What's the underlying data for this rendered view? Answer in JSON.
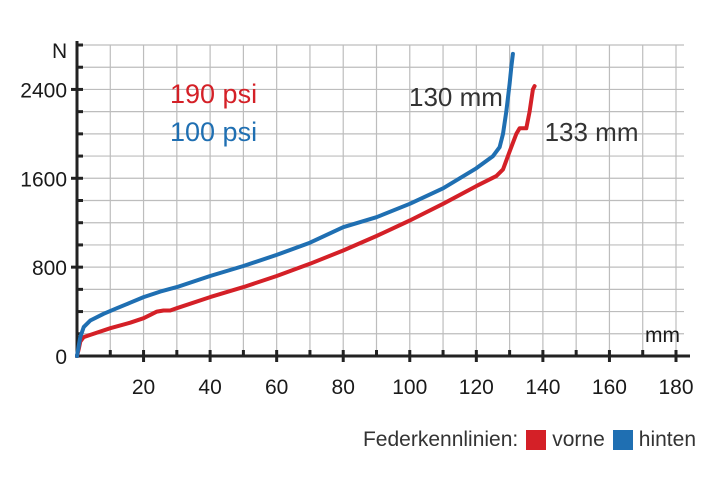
{
  "chart_data": {
    "type": "line",
    "ylabel": "N",
    "xlabel": "mm",
    "xlim": [
      0,
      180
    ],
    "ylim": [
      0,
      2800
    ],
    "x_ticks": [
      "20",
      "40",
      "60",
      "80",
      "100",
      "120",
      "140",
      "160",
      "180"
    ],
    "y_ticks": [
      "0",
      "800",
      "1600",
      "2400"
    ],
    "grid": true,
    "series": [
      {
        "name": "vorne",
        "color": "#d42027",
        "pressure_label": "190 psi",
        "end_label": "133 mm",
        "points": [
          [
            0,
            0
          ],
          [
            0.5,
            60
          ],
          [
            1,
            130
          ],
          [
            2,
            170
          ],
          [
            4,
            190
          ],
          [
            10,
            250
          ],
          [
            16,
            300
          ],
          [
            20,
            340
          ],
          [
            22,
            370
          ],
          [
            24,
            400
          ],
          [
            26,
            410
          ],
          [
            28,
            410
          ],
          [
            30,
            430
          ],
          [
            40,
            530
          ],
          [
            50,
            620
          ],
          [
            60,
            720
          ],
          [
            70,
            830
          ],
          [
            80,
            950
          ],
          [
            90,
            1080
          ],
          [
            100,
            1220
          ],
          [
            110,
            1370
          ],
          [
            120,
            1530
          ],
          [
            126,
            1620
          ],
          [
            128,
            1680
          ],
          [
            130,
            1840
          ],
          [
            132,
            2000
          ],
          [
            133,
            2050
          ],
          [
            134,
            2050
          ],
          [
            135,
            2050
          ],
          [
            136,
            2200
          ],
          [
            137,
            2400
          ],
          [
            137.5,
            2430
          ]
        ]
      },
      {
        "name": "hinten",
        "color": "#1f6fb2",
        "pressure_label": "100 psi",
        "end_label": "130 mm",
        "points": [
          [
            0,
            0
          ],
          [
            0.5,
            90
          ],
          [
            1,
            170
          ],
          [
            2,
            260
          ],
          [
            4,
            320
          ],
          [
            8,
            380
          ],
          [
            12,
            430
          ],
          [
            16,
            480
          ],
          [
            20,
            530
          ],
          [
            25,
            580
          ],
          [
            30,
            620
          ],
          [
            40,
            720
          ],
          [
            50,
            810
          ],
          [
            60,
            910
          ],
          [
            70,
            1020
          ],
          [
            80,
            1160
          ],
          [
            90,
            1250
          ],
          [
            100,
            1370
          ],
          [
            110,
            1510
          ],
          [
            120,
            1690
          ],
          [
            125,
            1800
          ],
          [
            127,
            1880
          ],
          [
            128,
            2000
          ],
          [
            129,
            2200
          ],
          [
            130,
            2450
          ],
          [
            130.5,
            2600
          ],
          [
            131,
            2720
          ]
        ]
      }
    ]
  },
  "legend": {
    "title": "Federkennlinien:",
    "items": [
      {
        "label": "vorne",
        "color": "#d42027"
      },
      {
        "label": "hinten",
        "color": "#1f6fb2"
      }
    ]
  }
}
